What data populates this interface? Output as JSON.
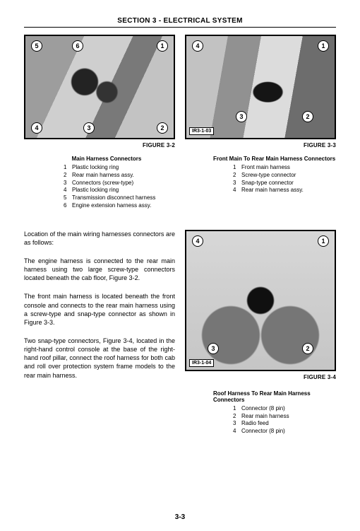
{
  "header": {
    "title": "SECTION 3 - ELECTRICAL SYSTEM"
  },
  "page_number": "3-3",
  "figures": {
    "f32": {
      "caption": "FIGURE 3-2",
      "callouts": [
        "5",
        "6",
        "1",
        "4",
        "3",
        "2"
      ],
      "legend_title": "Main Harness Connectors",
      "legend": [
        {
          "n": "1",
          "t": "Plastic locking ring"
        },
        {
          "n": "2",
          "t": "Rear main harness assy."
        },
        {
          "n": "3",
          "t": "Connectors (screw-type)"
        },
        {
          "n": "4",
          "t": "Plastic locking ring"
        },
        {
          "n": "5",
          "t": "Transmission disconnect harness"
        },
        {
          "n": "6",
          "t": "Engine extension harness assy."
        }
      ]
    },
    "f33": {
      "caption": "FIGURE 3-3",
      "ref": "IR3-1-03",
      "callouts": [
        "4",
        "1",
        "3",
        "2"
      ],
      "legend_title": "Front Main To Rear Main Harness Connectors",
      "legend": [
        {
          "n": "1",
          "t": "Front main harness"
        },
        {
          "n": "2",
          "t": "Screw-type connector"
        },
        {
          "n": "3",
          "t": "Snap-type connector"
        },
        {
          "n": "4",
          "t": "Rear main harness assy."
        }
      ]
    },
    "f34": {
      "caption": "FIGURE 3-4",
      "ref": "IR3-1-04",
      "callouts": [
        "4",
        "1",
        "3",
        "2"
      ],
      "legend_title": "Roof Harness To Rear Main Harness Connectors",
      "legend": [
        {
          "n": "1",
          "t": "Connector (8 pin)"
        },
        {
          "n": "2",
          "t": "Rear main harness"
        },
        {
          "n": "3",
          "t": "Radio feed"
        },
        {
          "n": "4",
          "t": "Connector (8 pin)"
        }
      ]
    }
  },
  "paragraphs": {
    "p1": "Location of the main wiring harnesses connectors are as follows:",
    "p2": "The engine harness is connected to the rear main harness using two large screw-type connectors located beneath the cab floor, Figure 3-2.",
    "p3": "The front main harness is located beneath the front console and connects to the rear main harness using a screw-type and snap-type connector as shown in Figure 3-3.",
    "p4": "Two snap-type connectors, Figure 3-4, located in the right-hand control console at the base of the right-hand roof pillar, connect the roof harness for both cab and roll over protection system frame models to the rear main harness."
  }
}
